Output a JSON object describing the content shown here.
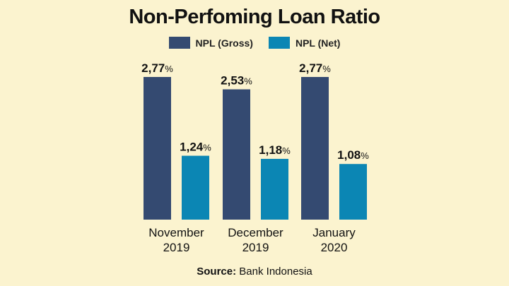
{
  "chart_data": {
    "type": "bar",
    "title": "Non-Perfoming Loan Ratio",
    "categories": [
      "November\n2019",
      "December\n2019",
      "January\n2020"
    ],
    "series": [
      {
        "name": "NPL (Gross)",
        "color": "#344a71",
        "values": [
          2.77,
          2.53,
          2.77
        ],
        "labels": [
          "2,77",
          "2,53",
          "2,77"
        ]
      },
      {
        "name": "NPL (Net)",
        "color": "#0b86b4",
        "values": [
          1.24,
          1.18,
          1.08
        ],
        "labels": [
          "1,24",
          "1,18",
          "1,08"
        ]
      }
    ],
    "value_suffix": "%",
    "ylim": [
      0,
      2.77
    ],
    "legend_position": "top-center",
    "grid": false
  },
  "source": {
    "label": "Source:",
    "text": "Bank Indonesia"
  }
}
